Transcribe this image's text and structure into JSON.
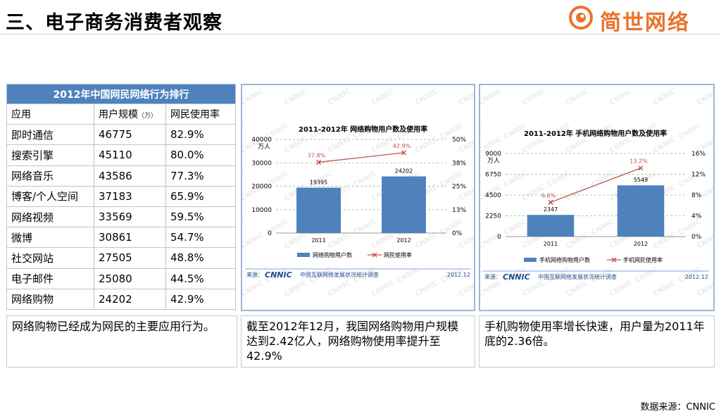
{
  "page": {
    "title": "三、电子商务消费者观察",
    "logo_text": "简世网络",
    "source": "数据来源：CNNIC"
  },
  "ranking": {
    "caption": "2012年中国网民网络行为排行",
    "headers": [
      "应用",
      "用户规模",
      "（万）",
      "网民使用率"
    ],
    "rows": [
      [
        "即时通信",
        "46775",
        "82.9%"
      ],
      [
        "搜索引擎",
        "45110",
        "80.0%"
      ],
      [
        "网络音乐",
        "43586",
        "77.3%"
      ],
      [
        "博客/个人空间",
        "37183",
        "65.9%"
      ],
      [
        "网络视频",
        "33569",
        "59.5%"
      ],
      [
        "微博",
        "30861",
        "54.7%"
      ],
      [
        "社交网站",
        "27505",
        "48.8%"
      ],
      [
        "电子邮件",
        "25080",
        "44.5%"
      ],
      [
        "网络购物",
        "24202",
        "42.9%"
      ]
    ]
  },
  "captions": [
    "网络购物已经成为网民的主要应用行为。",
    "截至2012年12月，我国网络购物用户规模达到2.42亿人，网络购物使用率提升至42.9%",
    "手机购物使用率增长快速，用户量为2011年底的2.36倍。"
  ],
  "chart_data": [
    {
      "type": "bar",
      "title": "2011-2012年 网络购物用户数及使用率",
      "ylabel_left": "万人",
      "categories": [
        "2011",
        "2012"
      ],
      "series": [
        {
          "name": "网络购物用户数",
          "kind": "bar",
          "values": [
            19395,
            24202
          ],
          "labels": [
            "19395",
            "24202"
          ],
          "color": "#4f81bd"
        },
        {
          "name": "网民使用率",
          "kind": "line",
          "values": [
            37.8,
            42.9
          ],
          "labels": [
            "37.8%",
            "42.9%"
          ],
          "color": "#c0504d"
        }
      ],
      "ylim_left": [
        0,
        40000
      ],
      "yticks_left": [
        "0",
        "10000",
        "20000",
        "30000",
        "40000"
      ],
      "ylim_right": [
        0,
        50
      ],
      "yticks_right": [
        "0%",
        "13%",
        "25%",
        "38%",
        "50%"
      ],
      "source_label": "来源：",
      "source_logo": "CNNIC",
      "source_org": "中国互联网络发展状况统计调查",
      "date": "2012.12",
      "watermark": "CNNIC",
      "grid": true,
      "legend": "bottom"
    },
    {
      "type": "bar",
      "title": "2011-2012年 手机网络购物用户数及使用率",
      "ylabel_left": "万人",
      "categories": [
        "2011",
        "2012"
      ],
      "series": [
        {
          "name": "手机网络购物用户数",
          "kind": "bar",
          "values": [
            2347,
            5549
          ],
          "labels": [
            "2347",
            "5549"
          ],
          "color": "#4f81bd"
        },
        {
          "name": "手机网民使用率",
          "kind": "line",
          "values": [
            6.6,
            13.2
          ],
          "labels": [
            "6.6%",
            "13.2%"
          ],
          "color": "#c0504d"
        }
      ],
      "ylim_left": [
        0,
        9000
      ],
      "yticks_left": [
        "0",
        "2250",
        "4500",
        "6750",
        "9000"
      ],
      "ylim_right": [
        0,
        16
      ],
      "yticks_right": [
        "0%",
        "4%",
        "8%",
        "12%",
        "16%"
      ],
      "source_label": "来源：",
      "source_logo": "CNNIC",
      "source_org": "中国互联网络发展状况统计调查",
      "date": "2012.12",
      "watermark": "CNNIC",
      "grid": true,
      "legend": "bottom"
    }
  ]
}
